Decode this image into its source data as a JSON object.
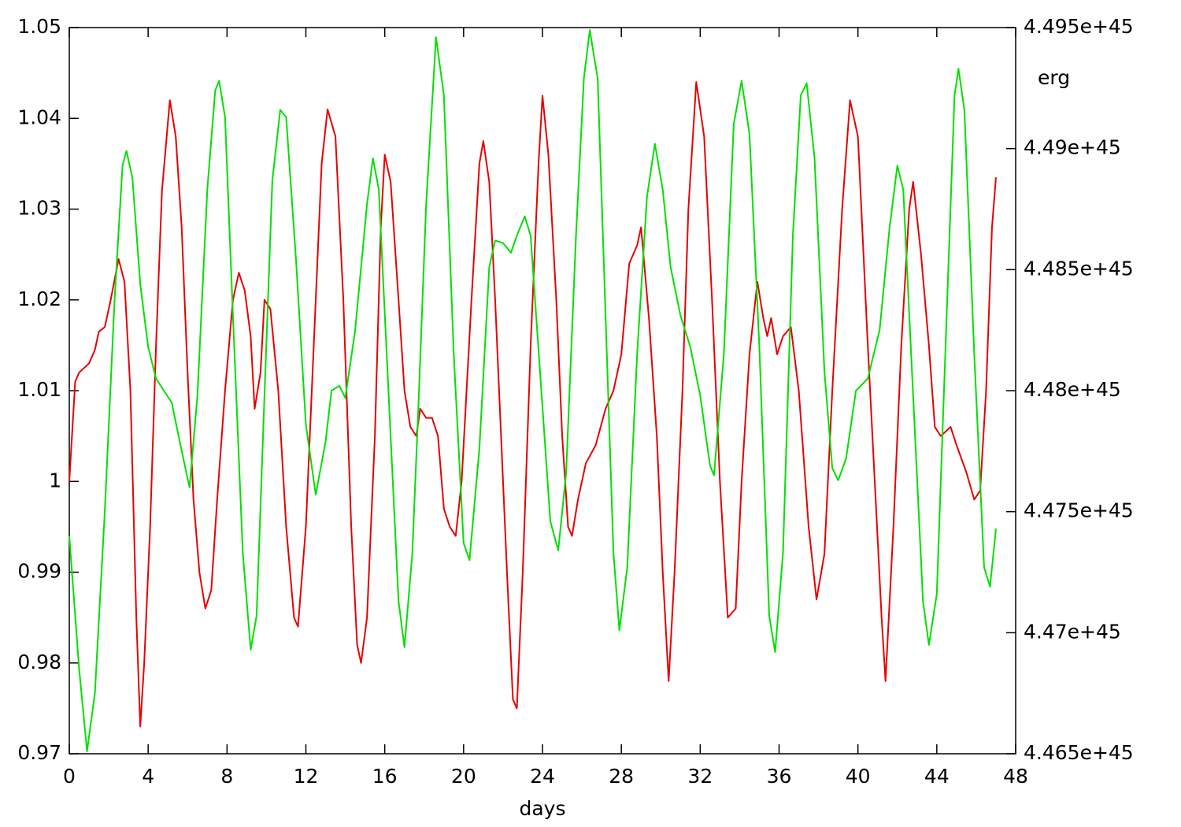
{
  "chart_data": {
    "type": "line",
    "x_label": "days",
    "y2_label": "erg",
    "xlim": [
      0,
      48
    ],
    "xticks": [
      0,
      4,
      8,
      12,
      16,
      20,
      24,
      28,
      32,
      36,
      40,
      44,
      48
    ],
    "ylim": [
      0.97,
      1.05
    ],
    "yticks": [
      0.97,
      0.98,
      0.99,
      1,
      1.01,
      1.02,
      1.03,
      1.04,
      1.05
    ],
    "y2lim": [
      4.465e+45,
      4.495e+45
    ],
    "y2ticks": [
      {
        "value": 4.465e+45,
        "label": "4.465e+45"
      },
      {
        "value": 4.47e+45,
        "label": "4.47e+45"
      },
      {
        "value": 4.475e+45,
        "label": "4.475e+45"
      },
      {
        "value": 4.48e+45,
        "label": "4.48e+45"
      },
      {
        "value": 4.485e+45,
        "label": "4.485e+45"
      },
      {
        "value": 4.49e+45,
        "label": "4.49e+45"
      },
      {
        "value": 4.495e+45,
        "label": "4.495e+45"
      }
    ],
    "series": [
      {
        "color": "#e80000",
        "x": [
          0,
          0.3,
          0.5,
          1,
          1.3,
          1.5,
          1.8,
          2.1,
          2.5,
          2.8,
          3.1,
          3.4,
          3.6,
          3.8,
          4.1,
          4.4,
          4.7,
          5.1,
          5.4,
          5.7,
          6.0,
          6.3,
          6.6,
          6.9,
          7.2,
          7.5,
          7.9,
          8.3,
          8.6,
          8.9,
          9.2,
          9.4,
          9.7,
          9.9,
          10.2,
          10.6,
          11.0,
          11.4,
          11.6,
          12.0,
          12.4,
          12.8,
          13.1,
          13.5,
          13.9,
          14.3,
          14.6,
          14.8,
          15.1,
          15.5,
          15.8,
          16.0,
          16.3,
          16.7,
          17.0,
          17.3,
          17.6,
          17.8,
          18.1,
          18.4,
          18.7,
          19.0,
          19.3,
          19.6,
          19.9,
          20.4,
          20.8,
          21.0,
          21.3,
          21.6,
          21.9,
          22.2,
          22.5,
          22.7,
          23.0,
          23.4,
          23.8,
          24.0,
          24.3,
          24.7,
          25.0,
          25.3,
          25.5,
          25.8,
          26.2,
          26.7,
          27.2,
          27.6,
          28.0,
          28.4,
          28.8,
          29.0,
          29.4,
          29.8,
          30.1,
          30.4,
          30.7,
          31.1,
          31.4,
          31.8,
          32.2,
          32.6,
          33.0,
          33.4,
          33.8,
          34.1,
          34.5,
          34.9,
          35.2,
          35.4,
          35.6,
          35.9,
          36.2,
          36.6,
          37.0,
          37.5,
          37.9,
          38.3,
          38.7,
          39.2,
          39.6,
          40.0,
          40.5,
          40.9,
          41.2,
          41.4,
          41.8,
          42.2,
          42.6,
          42.8,
          43.2,
          43.6,
          43.9,
          44.2,
          44.7,
          45.0,
          45.5,
          45.9,
          46.2,
          46.5,
          46.8,
          47.0
        ],
        "values": [
          1.0,
          1.011,
          1.012,
          1.013,
          1.0145,
          1.0165,
          1.017,
          1.02,
          1.0245,
          1.022,
          1.01,
          0.985,
          0.973,
          0.98,
          0.995,
          1.015,
          1.032,
          1.042,
          1.038,
          1.028,
          1.012,
          0.998,
          0.99,
          0.986,
          0.988,
          0.998,
          1.01,
          1.02,
          1.023,
          1.021,
          1.016,
          1.008,
          1.012,
          1.02,
          1.019,
          1.01,
          0.995,
          0.985,
          0.984,
          0.995,
          1.015,
          1.035,
          1.041,
          1.038,
          1.02,
          0.995,
          0.982,
          0.98,
          0.985,
          1.005,
          1.028,
          1.036,
          1.033,
          1.02,
          1.01,
          1.006,
          1.005,
          1.008,
          1.007,
          1.007,
          1.005,
          0.997,
          0.995,
          0.994,
          1.0,
          1.02,
          1.035,
          1.0375,
          1.033,
          1.02,
          1.005,
          0.99,
          0.976,
          0.975,
          0.99,
          1.015,
          1.035,
          1.0425,
          1.036,
          1.02,
          1.005,
          0.995,
          0.994,
          0.998,
          1.002,
          1.004,
          1.008,
          1.01,
          1.014,
          1.024,
          1.026,
          1.028,
          1.018,
          1.005,
          0.99,
          0.978,
          0.99,
          1.01,
          1.03,
          1.044,
          1.038,
          1.02,
          1.0,
          0.985,
          0.986,
          1.0,
          1.014,
          1.022,
          1.018,
          1.016,
          1.018,
          1.014,
          1.016,
          1.017,
          1.01,
          0.995,
          0.987,
          0.992,
          1.01,
          1.03,
          1.042,
          1.038,
          1.015,
          0.998,
          0.985,
          0.978,
          0.995,
          1.015,
          1.03,
          1.033,
          1.025,
          1.015,
          1.006,
          1.005,
          1.006,
          1.004,
          1.001,
          0.998,
          0.999,
          1.01,
          1.028,
          1.0335
        ]
      },
      {
        "color": "#00e000",
        "axis": "y2",
        "x": [
          0,
          0.5,
          0.9,
          1.3,
          1.8,
          2.3,
          2.7,
          2.9,
          3.2,
          3.6,
          4.0,
          4.4,
          4.8,
          5.2,
          5.6,
          6.1,
          6.5,
          7.0,
          7.4,
          7.6,
          7.9,
          8.3,
          8.8,
          9.2,
          9.5,
          9.9,
          10.3,
          10.7,
          11.0,
          11.5,
          12.0,
          12.5,
          13.0,
          13.3,
          13.7,
          14.0,
          14.5,
          15.1,
          15.4,
          15.7,
          16.2,
          16.7,
          17.0,
          17.4,
          17.7,
          18.1,
          18.6,
          19.0,
          19.5,
          20.0,
          20.3,
          20.8,
          21.3,
          21.6,
          22.0,
          22.4,
          22.7,
          23.1,
          23.4,
          23.9,
          24.4,
          24.8,
          25.2,
          25.7,
          26.1,
          26.4,
          26.8,
          27.2,
          27.6,
          27.9,
          28.3,
          28.8,
          29.3,
          29.7,
          30.1,
          30.5,
          31.0,
          31.5,
          32.0,
          32.5,
          32.7,
          33.2,
          33.7,
          34.1,
          34.5,
          35.0,
          35.5,
          35.8,
          36.2,
          36.7,
          37.1,
          37.4,
          37.8,
          38.3,
          38.7,
          39.0,
          39.4,
          39.9,
          40.5,
          41.1,
          41.6,
          42.0,
          42.3,
          42.8,
          43.3,
          43.6,
          44.0,
          44.5,
          44.9,
          45.1,
          45.4,
          45.9,
          46.4,
          46.7,
          47.0
        ],
        "values": [
          4.474e+45,
          4.4685e+45,
          4.4651e+45,
          4.4675e+45,
          4.475e+45,
          4.4838e+45,
          4.4893e+45,
          4.4899e+45,
          4.4888e+45,
          4.4844e+45,
          4.4818e+45,
          4.4805e+45,
          4.48e+45,
          4.4795e+45,
          4.4779e+45,
          4.476e+45,
          4.4798e+45,
          4.4883e+45,
          4.4924e+45,
          4.4928e+45,
          4.4913e+45,
          4.4831e+45,
          4.4733e+45,
          4.4693e+45,
          4.4707e+45,
          4.4798e+45,
          4.4887e+45,
          4.4916e+45,
          4.4913e+45,
          4.4854e+45,
          4.4786e+45,
          4.4757e+45,
          4.4779e+45,
          4.48e+45,
          4.4802e+45,
          4.4797e+45,
          4.4825e+45,
          4.4877e+45,
          4.4896e+45,
          4.4883e+45,
          4.4798e+45,
          4.4713e+45,
          4.4694e+45,
          4.4733e+45,
          4.4792e+45,
          4.4877e+45,
          4.4946e+45,
          4.4922e+45,
          4.4815e+45,
          4.4737e+45,
          4.473e+45,
          4.4776e+45,
          4.4851e+45,
          4.4862e+45,
          4.4861e+45,
          4.4857e+45,
          4.4864e+45,
          4.4872e+45,
          4.4864e+45,
          4.4805e+45,
          4.4746e+45,
          4.4734e+45,
          4.4766e+45,
          4.4864e+45,
          4.4929e+45,
          4.4949e+45,
          4.4929e+45,
          4.4831e+45,
          4.4733e+45,
          4.4701e+45,
          4.4727e+45,
          4.4815e+45,
          4.488e+45,
          4.4902e+45,
          4.4883e+45,
          4.4851e+45,
          4.4831e+45,
          4.4818e+45,
          4.4798e+45,
          4.4769e+45,
          4.4765e+45,
          4.4815e+45,
          4.491e+45,
          4.4928e+45,
          4.4906e+45,
          4.4818e+45,
          4.4707e+45,
          4.4692e+45,
          4.4733e+45,
          4.4864e+45,
          4.4922e+45,
          4.4927e+45,
          4.4896e+45,
          4.4808e+45,
          4.4768e+45,
          4.4763e+45,
          4.4772e+45,
          4.48e+45,
          4.4805e+45,
          4.4825e+45,
          4.4867e+45,
          4.4893e+45,
          4.4883e+45,
          4.4798e+45,
          4.4713e+45,
          4.4695e+45,
          4.4716e+45,
          4.4831e+45,
          4.4922e+45,
          4.4933e+45,
          4.4916e+45,
          4.4815e+45,
          4.4727e+45,
          4.4719e+45,
          4.4743e+45
        ]
      }
    ]
  }
}
